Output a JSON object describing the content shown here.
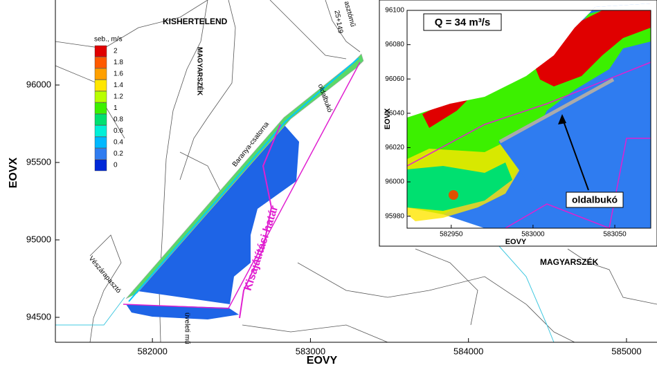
{
  "main_map": {
    "xlim": [
      581386,
      585193
    ],
    "ylim": [
      94339,
      96549
    ],
    "xticks": [
      582000,
      583000,
      584000,
      585000
    ],
    "yticks": [
      94500,
      95000,
      95500,
      96000
    ],
    "x_label": "EOVY",
    "y_label": "EOVX",
    "labels": [
      "KISHERTELEND",
      "MAGYARSZÉK",
      "Baranya-csatorna",
      "oldalbukó",
      "25+149",
      "asztómű",
      "Vészárapasztó",
      "Kisajátítási határ",
      "üveleti mű",
      "MAGYARSZÉK"
    ]
  },
  "legend": {
    "title": "seb., m/s",
    "entries": [
      {
        "value": 2,
        "color": "#e00000"
      },
      {
        "value": 1.8,
        "color": "#ff5a00"
      },
      {
        "value": 1.6,
        "color": "#ffa000"
      },
      {
        "value": 1.4,
        "color": "#ffe600"
      },
      {
        "value": 1.2,
        "color": "#b8ff00"
      },
      {
        "value": 1,
        "color": "#3cf000"
      },
      {
        "value": 0.8,
        "color": "#00e070"
      },
      {
        "value": 0.6,
        "color": "#00f0d8"
      },
      {
        "value": 0.4,
        "color": "#00b8ff"
      },
      {
        "value": 0.2,
        "color": "#2f7cf0"
      },
      {
        "value": 0,
        "color": "#0028d8"
      }
    ]
  },
  "inset": {
    "title": "Q = 34 m³/s",
    "xlim": [
      582923,
      583072
    ],
    "ylim": [
      95973,
      96100
    ],
    "xticks": [
      582950,
      583000,
      583050
    ],
    "yticks": [
      95980,
      96000,
      96020,
      96040,
      96060,
      96080,
      96100
    ],
    "x_label": "EOVY",
    "y_label": "EOVX",
    "callout": "oldalbukó"
  }
}
